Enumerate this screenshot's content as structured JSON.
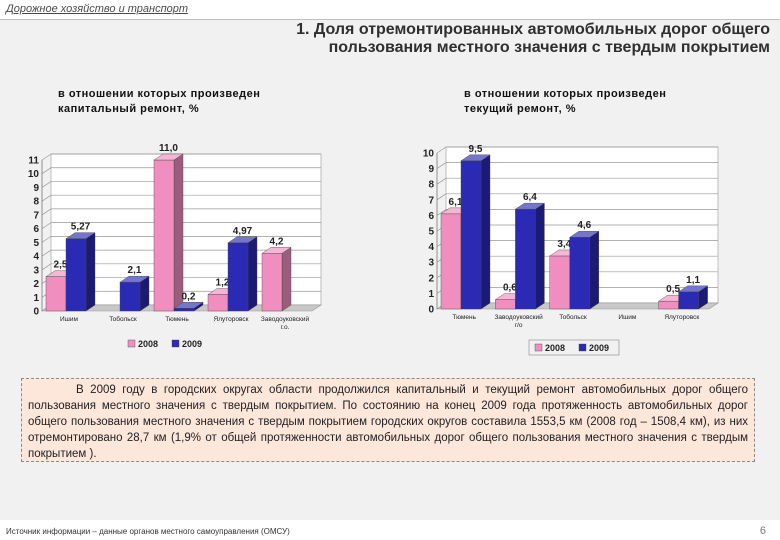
{
  "header": {
    "section_label": "Дорожное хозяйство и транспорт",
    "title_line1": "1. Доля отремонтированных автомобильных дорог общего",
    "title_line2": "пользования местного значения с твердым покрытием"
  },
  "colors": {
    "series_2008": "#f08fbf",
    "series_2009": "#2a2ab4",
    "floor": "#c8c8c8"
  },
  "chart_data": [
    {
      "type": "bar",
      "subtitle_line1": "в отношении которых произведен",
      "subtitle_line2": "капитальный ремонт, %",
      "categories": [
        "Ишим",
        "Тобольск",
        "Тюмень",
        "Ялуторовск",
        "Заводоуковский г.о."
      ],
      "series": [
        {
          "name": "2008",
          "values": [
            2.5,
            null,
            11.0,
            1.2,
            4.2
          ],
          "labels": [
            "2,5",
            "",
            "11,0",
            "1,2",
            "4,2"
          ]
        },
        {
          "name": "2009",
          "values": [
            5.27,
            2.1,
            0.2,
            4.97,
            null
          ],
          "labels": [
            "5,27",
            "2,1",
            "0,2",
            "4,97",
            ""
          ]
        }
      ],
      "ylim": [
        0,
        11
      ],
      "yticks": [
        0,
        1,
        2,
        3,
        4,
        5,
        6,
        7,
        8,
        9,
        10,
        11
      ],
      "legend": [
        "2008",
        "2009"
      ],
      "legend_position": "bottom"
    },
    {
      "type": "bar",
      "subtitle_line1": "в отношении которых произведен",
      "subtitle_line2": "текущий ремонт, %",
      "categories": [
        "Тюмень",
        "Заводоуковский г/о",
        "Тобольск",
        "Ишим",
        "Ялуторовск"
      ],
      "series": [
        {
          "name": "2008",
          "values": [
            6.1,
            0.6,
            3.4,
            null,
            0.5
          ],
          "labels": [
            "6,1",
            "0,6",
            "3,4",
            "",
            "0,5"
          ]
        },
        {
          "name": "2009",
          "values": [
            9.5,
            6.4,
            4.6,
            null,
            1.1
          ],
          "labels": [
            "9,5",
            "6,4",
            "4,6",
            "",
            "1,1"
          ]
        }
      ],
      "ylim": [
        0,
        10
      ],
      "yticks": [
        0,
        1,
        2,
        3,
        4,
        5,
        6,
        7,
        8,
        9,
        10
      ],
      "legend": [
        "2008",
        "2009"
      ],
      "legend_position": "bottom"
    }
  ],
  "note": {
    "text": "В 2009 году в городских округах области продолжился капитальный и текущий ремонт автомобильных дорог общего пользования местного значения с твердым покрытием. По состоянию на конец 2009 года протяженность автомобильных дорог общего пользования местного значения с твердым покрытием городских округов составила 1553,5 км (2008 год – 1508,4 км), из них отремонтировано 28,7 км (1,9% от общей протяженности автомобильных дорог общего пользования местного значения с твердым покрытием )."
  },
  "footer": {
    "source": "Источник информации – данные органов местного самоуправления (ОМСУ)",
    "page_number": "6"
  }
}
